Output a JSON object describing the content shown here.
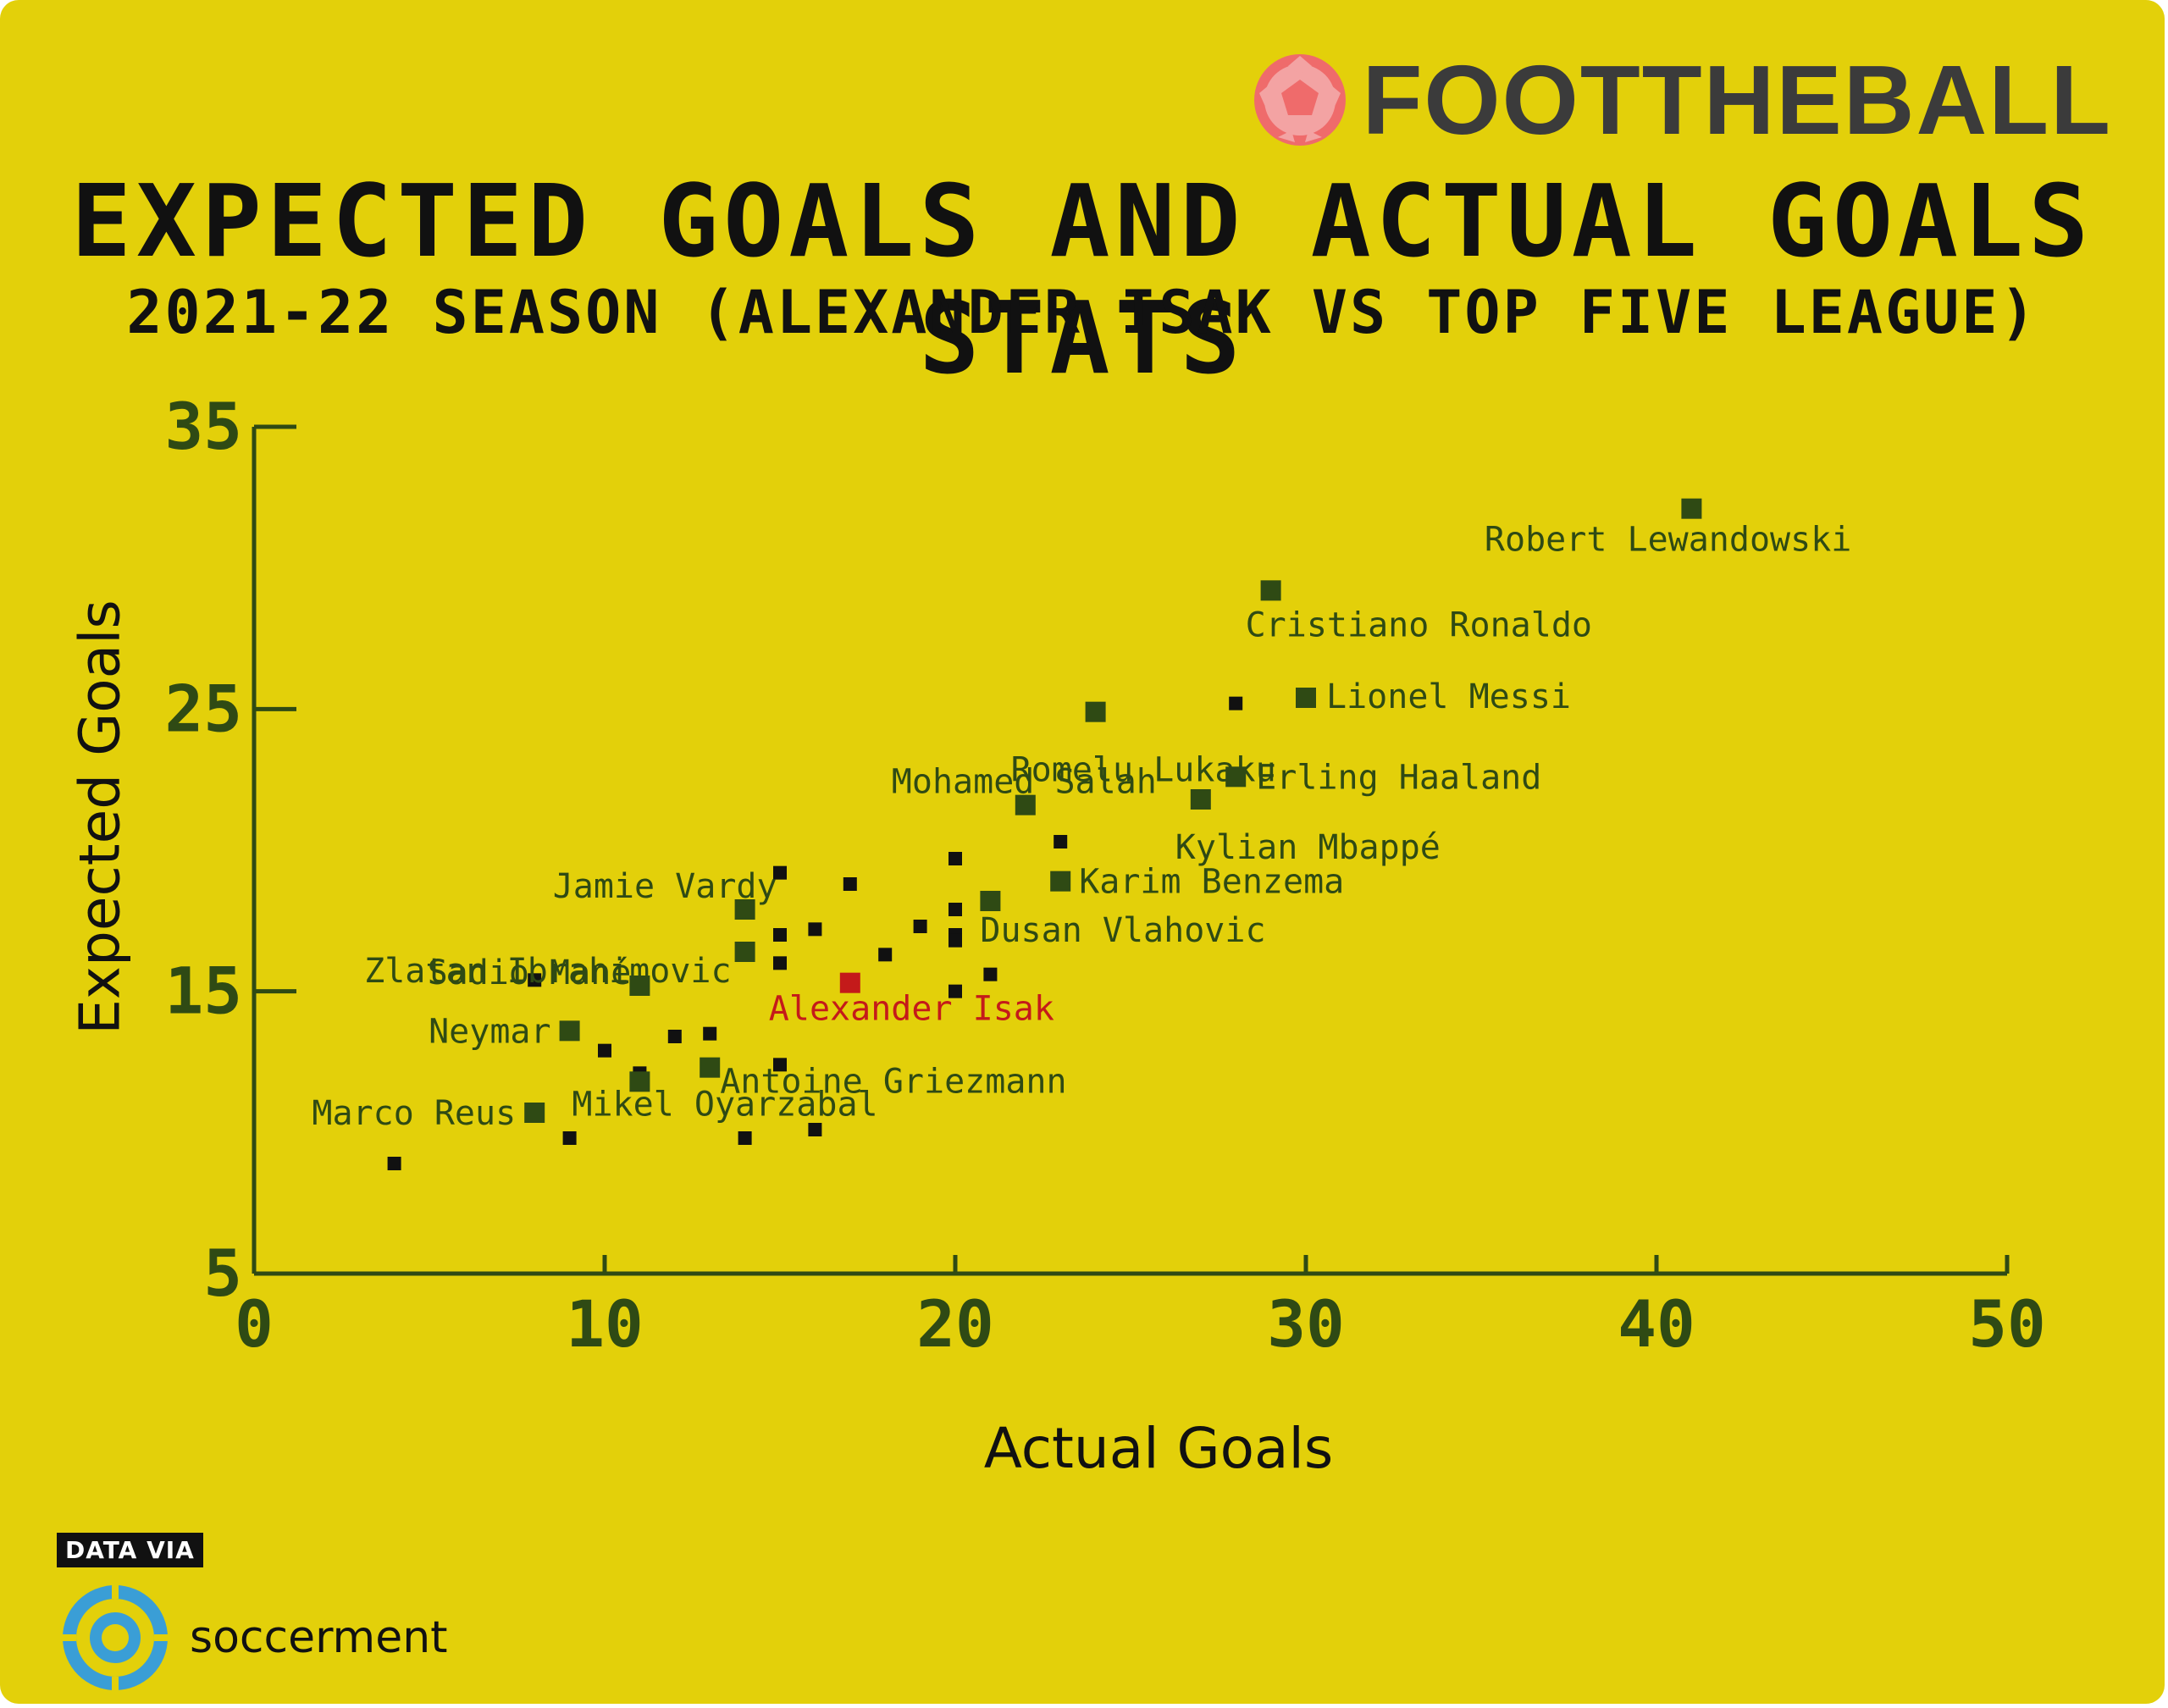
{
  "brand": {
    "name": "FOOTTHEBALL"
  },
  "title": "EXPECTED GOALS AND ACTUAL GOALS STATS",
  "subtitle": "2021-22 SEASON (ALEXANDER ISAK VS TOP FIVE LEAGUE)",
  "footer": {
    "data_via": "DATA VIA",
    "source": "soccerment"
  },
  "colors": {
    "background": "#e3d00a",
    "axis": "#2f4a14",
    "highlight": "#c41a1a",
    "point": "#111111",
    "labeled_point": "#2f4a14"
  },
  "chart_data": {
    "type": "scatter",
    "xlabel": "Actual Goals",
    "ylabel": "Expected Goals",
    "xlim": [
      0,
      50
    ],
    "ylim": [
      5,
      35
    ],
    "xticks": [
      0,
      10,
      20,
      30,
      40,
      50
    ],
    "yticks": [
      5,
      15,
      25,
      35
    ],
    "grid": false,
    "labeled_points": [
      {
        "name": "Robert Lewandowski",
        "x": 41,
        "y": 32.1
      },
      {
        "name": "Cristiano Ronaldo",
        "x": 29,
        "y": 29.2
      },
      {
        "name": "Lionel Messi",
        "x": 30,
        "y": 25.4
      },
      {
        "name": "Romelu Lukaku",
        "x": 24,
        "y": 24.9
      },
      {
        "name": "Erling Haaland",
        "x": 28,
        "y": 22.6
      },
      {
        "name": "Mohamed Salah",
        "x": 22,
        "y": 21.6
      },
      {
        "name": "Kylian Mbappé",
        "x": 27,
        "y": 21.8
      },
      {
        "name": "Karim Benzema",
        "x": 23,
        "y": 18.9
      },
      {
        "name": "Jamie Vardy",
        "x": 14,
        "y": 17.9
      },
      {
        "name": "Dusan Vlahovic",
        "x": 21,
        "y": 18.2
      },
      {
        "name": "Zlatan Ibrahimovic",
        "x": 14,
        "y": 16.4
      },
      {
        "name": "Sadio Mané",
        "x": 11,
        "y": 15.2
      },
      {
        "name": "Alexander Isak",
        "x": 17,
        "y": 15.3,
        "highlight": true
      },
      {
        "name": "Neymar",
        "x": 9,
        "y": 13.6
      },
      {
        "name": "Antoine Griezmann",
        "x": 13,
        "y": 12.3
      },
      {
        "name": "Marco Reus",
        "x": 8,
        "y": 10.7
      },
      {
        "name": "Mikel Oyarzabal",
        "x": 11,
        "y": 11.8
      }
    ],
    "other_points": [
      {
        "x": 4,
        "y": 8.9
      },
      {
        "x": 8,
        "y": 15.4
      },
      {
        "x": 9,
        "y": 9.8
      },
      {
        "x": 10,
        "y": 12.9
      },
      {
        "x": 11,
        "y": 12.1
      },
      {
        "x": 12,
        "y": 13.4
      },
      {
        "x": 13,
        "y": 13.5
      },
      {
        "x": 14,
        "y": 9.8
      },
      {
        "x": 15,
        "y": 19.2
      },
      {
        "x": 15,
        "y": 17.0
      },
      {
        "x": 15,
        "y": 16.0
      },
      {
        "x": 15,
        "y": 12.4
      },
      {
        "x": 16,
        "y": 17.2
      },
      {
        "x": 16,
        "y": 10.1
      },
      {
        "x": 17,
        "y": 18.8
      },
      {
        "x": 18,
        "y": 16.3
      },
      {
        "x": 19,
        "y": 17.3
      },
      {
        "x": 20,
        "y": 19.7
      },
      {
        "x": 20,
        "y": 17.9
      },
      {
        "x": 20,
        "y": 17.0
      },
      {
        "x": 20,
        "y": 16.8
      },
      {
        "x": 20,
        "y": 15.0
      },
      {
        "x": 21,
        "y": 15.6
      },
      {
        "x": 23,
        "y": 20.3
      },
      {
        "x": 28,
        "y": 25.2
      }
    ]
  }
}
